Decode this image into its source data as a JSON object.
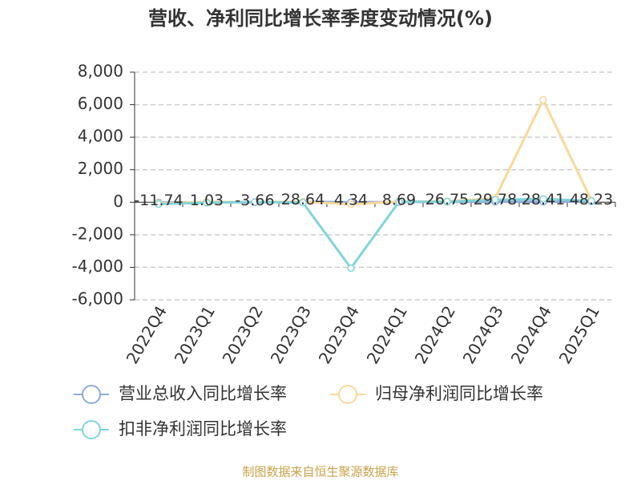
{
  "chart_data": {
    "type": "line",
    "title": "营收、净利同比增长率季度变动情况(%)",
    "categories": [
      "2022Q4",
      "2023Q1",
      "2023Q2",
      "2023Q3",
      "2023Q4",
      "2024Q1",
      "2024Q2",
      "2024Q3",
      "2024Q4",
      "2025Q1"
    ],
    "series": [
      {
        "name": "营业总收入同比增长率",
        "color": "#8eaad9",
        "values": [
          -11.74,
          1.03,
          -3.66,
          28.64,
          4.34,
          8.69,
          26.75,
          29.78,
          28.41,
          48.23
        ]
      },
      {
        "name": "归母净利润同比增长率",
        "color": "#f8d89b",
        "values": [
          -60,
          20,
          10,
          30,
          -120,
          40,
          60,
          250,
          6300,
          120
        ]
      },
      {
        "name": "扣非净利润同比增长率",
        "color": "#82d4d8",
        "values": [
          -110,
          -30,
          20,
          -20,
          -4050,
          30,
          40,
          150,
          200,
          90
        ]
      }
    ],
    "ylim": [
      -6000,
      8000
    ],
    "yticks": [
      {
        "value": -6000,
        "label": "-6,000"
      },
      {
        "value": -4000,
        "label": "-4,000"
      },
      {
        "value": -2000,
        "label": "-2,000"
      },
      0,
      {
        "value": 2000,
        "label": "2,000"
      },
      {
        "value": 4000,
        "label": "4,000"
      },
      {
        "value": 6000,
        "label": "6,000"
      },
      {
        "value": 8000,
        "label": "8,000"
      }
    ],
    "grid": true,
    "source": "制图数据来自恒生聚源数据库"
  }
}
